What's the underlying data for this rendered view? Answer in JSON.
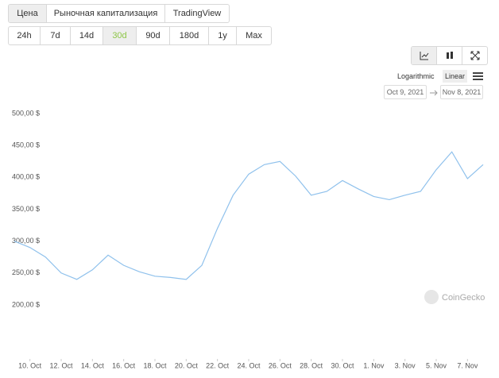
{
  "ui": {
    "tabs": [
      "Цена",
      "Рыночная капитализация",
      "TradingView"
    ],
    "active_tab": 0,
    "ranges": [
      "24h",
      "7d",
      "14d",
      "30d",
      "90d",
      "180d",
      "1y",
      "Max"
    ],
    "active_range": 3,
    "scale": [
      "Logarithmic",
      "Linear"
    ],
    "active_scale": 1,
    "date_from": "Oct 9, 2021",
    "date_to": "Nov 8, 2021",
    "watermark": "CoinGecko"
  },
  "chart_data": {
    "type": "line",
    "color": "#8fc1ec",
    "x": [
      "2021-10-09",
      "2021-10-10",
      "2021-10-11",
      "2021-10-12",
      "2021-10-13",
      "2021-10-14",
      "2021-10-15",
      "2021-10-16",
      "2021-10-17",
      "2021-10-18",
      "2021-10-19",
      "2021-10-20",
      "2021-10-21",
      "2021-10-22",
      "2021-10-23",
      "2021-10-24",
      "2021-10-25",
      "2021-10-26",
      "2021-10-27",
      "2021-10-28",
      "2021-10-29",
      "2021-10-30",
      "2021-10-31",
      "2021-11-01",
      "2021-11-02",
      "2021-11-03",
      "2021-11-04",
      "2021-11-05",
      "2021-11-06",
      "2021-11-07",
      "2021-11-08"
    ],
    "values": [
      300,
      290,
      275,
      250,
      240,
      255,
      278,
      262,
      252,
      245,
      243,
      240,
      262,
      320,
      372,
      405,
      420,
      425,
      402,
      372,
      378,
      395,
      382,
      370,
      365,
      372,
      378,
      412,
      440,
      398,
      420
    ],
    "xlim": [
      "2021-10-09",
      "2021-11-08"
    ],
    "xticks": [
      {
        "value": "2021-10-10",
        "label": "10. Oct"
      },
      {
        "value": "2021-10-12",
        "label": "12. Oct"
      },
      {
        "value": "2021-10-14",
        "label": "14. Oct"
      },
      {
        "value": "2021-10-16",
        "label": "16. Oct"
      },
      {
        "value": "2021-10-18",
        "label": "18. Oct"
      },
      {
        "value": "2021-10-20",
        "label": "20. Oct"
      },
      {
        "value": "2021-10-22",
        "label": "22. Oct"
      },
      {
        "value": "2021-10-24",
        "label": "24. Oct"
      },
      {
        "value": "2021-10-26",
        "label": "26. Oct"
      },
      {
        "value": "2021-10-28",
        "label": "28. Oct"
      },
      {
        "value": "2021-10-30",
        "label": "30. Oct"
      },
      {
        "value": "2021-11-01",
        "label": "1. Nov"
      },
      {
        "value": "2021-11-03",
        "label": "3. Nov"
      },
      {
        "value": "2021-11-05",
        "label": "5. Nov"
      },
      {
        "value": "2021-11-07",
        "label": "7. Nov"
      }
    ],
    "ylim": [
      180,
      510
    ],
    "yticks": [
      {
        "value": 200,
        "label": "200,00 $"
      },
      {
        "value": 250,
        "label": "250,00 $"
      },
      {
        "value": 300,
        "label": "300,00 $"
      },
      {
        "value": 350,
        "label": "350,00 $"
      },
      {
        "value": 400,
        "label": "400,00 $"
      },
      {
        "value": 450,
        "label": "450,00 $"
      },
      {
        "value": 500,
        "label": "500,00 $"
      }
    ]
  }
}
